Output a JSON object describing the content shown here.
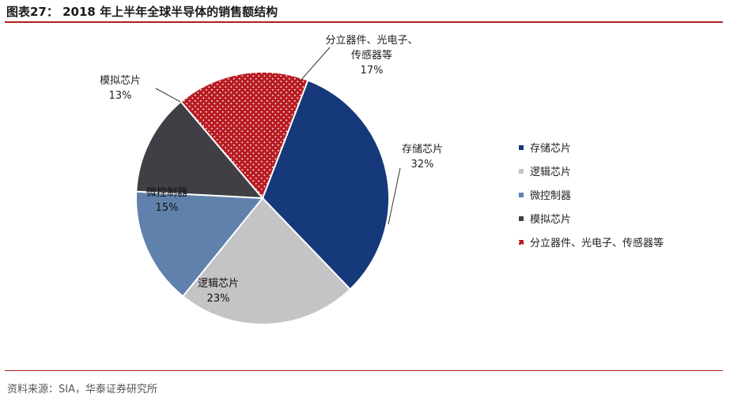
{
  "figure": {
    "title": "图表27：  2018 年上半年全球半导体的销售额结构",
    "source": "资料来源：SIA，华泰证券研究所"
  },
  "chart_data": {
    "type": "pie",
    "categories": [
      "存储芯片",
      "逻辑芯片",
      "微控制器",
      "模拟芯片",
      "分立器件、光电子、传感器等"
    ],
    "values": [
      32,
      23,
      15,
      13,
      17
    ],
    "value_labels": [
      "32%",
      "23%",
      "15%",
      "13%",
      "17%"
    ],
    "slice_label_lines": [
      [
        "存储芯片"
      ],
      [
        "逻辑芯片"
      ],
      [
        "微控制器"
      ],
      [
        "模拟芯片"
      ],
      [
        "分立器件、光电子、",
        "传感器等"
      ]
    ],
    "colors": [
      "#15397a",
      "#c4c4c6",
      "#6081ab",
      "#3f3f45",
      "#b81c22"
    ],
    "patterns": [
      "solid",
      "solid",
      "solid",
      "solid",
      "dotted"
    ],
    "start_angle_deg": 21,
    "direction": "clockwise",
    "legend_position": "right"
  }
}
